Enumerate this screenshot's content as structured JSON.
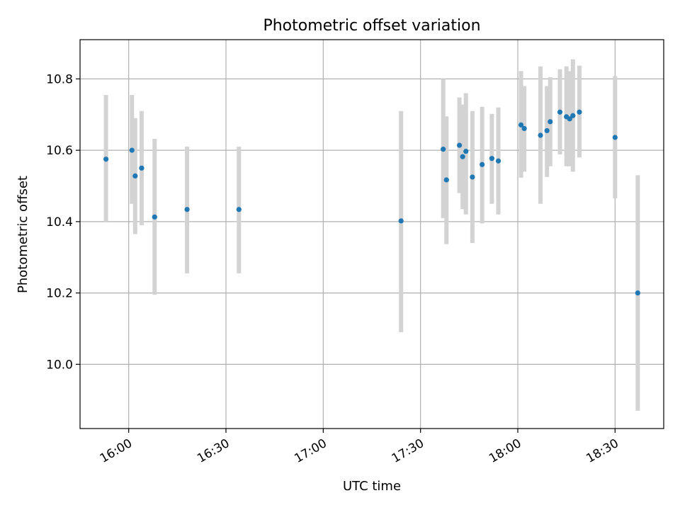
{
  "chart_data": {
    "type": "scatter",
    "title": "Photometric offset variation",
    "xlabel": "UTC time",
    "ylabel": "Photometric offset",
    "xlim": [
      "15:45",
      "18:45"
    ],
    "ylim": [
      9.82,
      10.91
    ],
    "x_tick_labels": [
      "16:00",
      "16:30",
      "17:00",
      "17:30",
      "18:00",
      "18:30"
    ],
    "y_tick_labels": [
      "10.0",
      "10.2",
      "10.4",
      "10.6",
      "10.8"
    ],
    "grid": true,
    "colors": {
      "point": "#1f77b4",
      "errorbar": "#d3d3d3",
      "grid": "#b0b0b0",
      "axes": "#000000"
    },
    "series": [
      {
        "points": [
          {
            "x": "15:53",
            "y": 10.575,
            "err_low": 10.4,
            "err_high": 10.755
          },
          {
            "x": "16:01",
            "y": 10.6,
            "err_low": 10.45,
            "err_high": 10.755
          },
          {
            "x": "16:02",
            "y": 10.528,
            "err_low": 10.365,
            "err_high": 10.69
          },
          {
            "x": "16:04",
            "y": 10.55,
            "err_low": 10.39,
            "err_high": 10.71
          },
          {
            "x": "16:08",
            "y": 10.413,
            "err_low": 10.195,
            "err_high": 10.632
          },
          {
            "x": "16:18",
            "y": 10.434,
            "err_low": 10.255,
            "err_high": 10.61
          },
          {
            "x": "16:34",
            "y": 10.434,
            "err_low": 10.255,
            "err_high": 10.61
          },
          {
            "x": "17:24",
            "y": 10.402,
            "err_low": 10.09,
            "err_high": 10.71
          },
          {
            "x": "17:37",
            "y": 10.603,
            "err_low": 10.41,
            "err_high": 10.8
          },
          {
            "x": "17:38",
            "y": 10.517,
            "err_low": 10.337,
            "err_high": 10.695
          },
          {
            "x": "17:42",
            "y": 10.614,
            "err_low": 10.48,
            "err_high": 10.748
          },
          {
            "x": "17:43",
            "y": 10.582,
            "err_low": 10.435,
            "err_high": 10.728
          },
          {
            "x": "17:44",
            "y": 10.597,
            "err_low": 10.42,
            "err_high": 10.76
          },
          {
            "x": "17:46",
            "y": 10.525,
            "err_low": 10.34,
            "err_high": 10.71
          },
          {
            "x": "17:49",
            "y": 10.56,
            "err_low": 10.395,
            "err_high": 10.722
          },
          {
            "x": "17:52",
            "y": 10.577,
            "err_low": 10.45,
            "err_high": 10.702
          },
          {
            "x": "17:54",
            "y": 10.57,
            "err_low": 10.42,
            "err_high": 10.72
          },
          {
            "x": "18:01",
            "y": 10.671,
            "err_low": 10.523,
            "err_high": 10.822
          },
          {
            "x": "18:02",
            "y": 10.661,
            "err_low": 10.54,
            "err_high": 10.78
          },
          {
            "x": "18:07",
            "y": 10.642,
            "err_low": 10.45,
            "err_high": 10.835
          },
          {
            "x": "18:09",
            "y": 10.655,
            "err_low": 10.525,
            "err_high": 10.78
          },
          {
            "x": "18:10",
            "y": 10.68,
            "err_low": 10.555,
            "err_high": 10.805
          },
          {
            "x": "18:13",
            "y": 10.707,
            "err_low": 10.588,
            "err_high": 10.827
          },
          {
            "x": "18:15",
            "y": 10.694,
            "err_low": 10.555,
            "err_high": 10.835
          },
          {
            "x": "18:16",
            "y": 10.688,
            "err_low": 10.555,
            "err_high": 10.822
          },
          {
            "x": "18:17",
            "y": 10.697,
            "err_low": 10.54,
            "err_high": 10.855
          },
          {
            "x": "18:19",
            "y": 10.707,
            "err_low": 10.58,
            "err_high": 10.837
          },
          {
            "x": "18:30",
            "y": 10.636,
            "err_low": 10.465,
            "err_high": 10.808
          },
          {
            "x": "18:37",
            "y": 10.2,
            "err_low": 9.87,
            "err_high": 10.53
          }
        ]
      }
    ]
  }
}
